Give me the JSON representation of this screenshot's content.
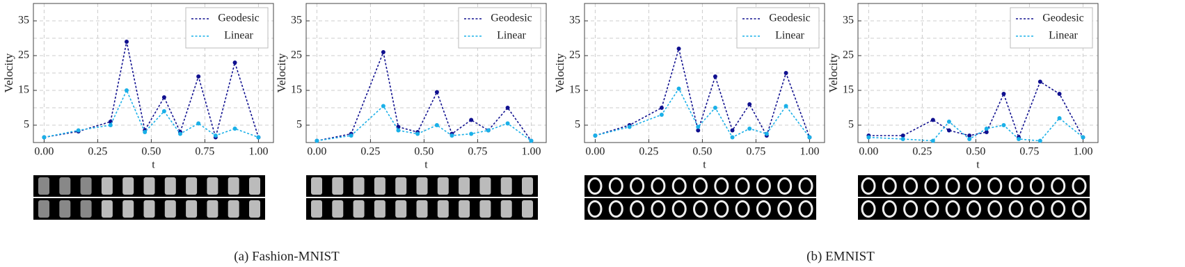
{
  "chart_data": [
    {
      "type": "line",
      "xlabel": "t",
      "ylabel": "Velocity",
      "x": [
        0.0,
        0.16,
        0.31,
        0.385,
        0.47,
        0.56,
        0.635,
        0.72,
        0.8,
        0.89,
        1.0
      ],
      "series": [
        {
          "name": "Geodesic",
          "color": "#10108f",
          "values": [
            1.5,
            3.2,
            6,
            29,
            3.5,
            13,
            3,
            19,
            1.5,
            23,
            1.5
          ]
        },
        {
          "name": "Linear",
          "color": "#1ab0e8",
          "values": [
            1.5,
            3.5,
            5,
            15,
            3,
            9,
            2.5,
            5.5,
            2,
            4,
            1.5
          ]
        }
      ],
      "xlim": [
        -0.05,
        1.07
      ],
      "ylim": [
        0,
        40
      ],
      "xticks": [
        {
          "value": 0,
          "label": "0.00"
        },
        {
          "value": 0.25,
          "label": "0.25"
        },
        {
          "value": 0.5,
          "label": "0.50"
        },
        {
          "value": 0.75,
          "label": "0.75"
        },
        {
          "value": 1,
          "label": "1.00"
        }
      ],
      "yticks": [
        5,
        15,
        25,
        35
      ],
      "grid_yticks": [
        10,
        20,
        30
      ],
      "grid": true,
      "legend": "upper right"
    },
    {
      "type": "line",
      "xlabel": "t",
      "ylabel": "Velocity",
      "x": [
        0.0,
        0.16,
        0.31,
        0.38,
        0.47,
        0.56,
        0.63,
        0.72,
        0.8,
        0.89,
        1.0
      ],
      "series": [
        {
          "name": "Geodesic",
          "color": "#10108f",
          "values": [
            0.5,
            2.5,
            26,
            4.5,
            3,
            14.5,
            2.5,
            6.5,
            3.5,
            10,
            0.5
          ]
        },
        {
          "name": "Linear",
          "color": "#1ab0e8",
          "values": [
            0.5,
            2,
            10.5,
            3.5,
            2.5,
            5,
            2,
            2.5,
            3.5,
            5.5,
            0.5
          ]
        }
      ],
      "xlim": [
        -0.05,
        1.07
      ],
      "ylim": [
        0,
        40
      ],
      "xticks": [
        {
          "value": 0,
          "label": "0.00"
        },
        {
          "value": 0.25,
          "label": "0.25"
        },
        {
          "value": 0.5,
          "label": "0.50"
        },
        {
          "value": 0.75,
          "label": "0.75"
        },
        {
          "value": 1,
          "label": "1.00"
        }
      ],
      "yticks": [
        5,
        15,
        25,
        35
      ],
      "grid_yticks": [
        10,
        20,
        30
      ],
      "grid": true,
      "legend": "upper right"
    },
    {
      "type": "line",
      "xlabel": "t",
      "ylabel": "Velocity",
      "x": [
        0.0,
        0.16,
        0.31,
        0.39,
        0.48,
        0.56,
        0.64,
        0.72,
        0.8,
        0.89,
        1.0
      ],
      "series": [
        {
          "name": "Geodesic",
          "color": "#10108f",
          "values": [
            2,
            5,
            10,
            27,
            3.5,
            19,
            3.5,
            11,
            2,
            20,
            1.5
          ]
        },
        {
          "name": "Linear",
          "color": "#1ab0e8",
          "values": [
            2,
            4.5,
            8,
            15.5,
            4.5,
            10,
            1.5,
            4,
            2.5,
            10.5,
            1.5
          ]
        }
      ],
      "xlim": [
        -0.05,
        1.07
      ],
      "ylim": [
        0,
        40
      ],
      "xticks": [
        {
          "value": 0,
          "label": "0.00"
        },
        {
          "value": 0.25,
          "label": "0.25"
        },
        {
          "value": 0.5,
          "label": "0.50"
        },
        {
          "value": 0.75,
          "label": "0.75"
        },
        {
          "value": 1,
          "label": "1.00"
        }
      ],
      "yticks": [
        5,
        15,
        25,
        35
      ],
      "grid_yticks": [
        10,
        20,
        30
      ],
      "grid": true,
      "legend": "upper right"
    },
    {
      "type": "line",
      "xlabel": "t",
      "ylabel": "Velocity",
      "x": [
        0.0,
        0.16,
        0.3,
        0.375,
        0.47,
        0.55,
        0.63,
        0.7,
        0.8,
        0.89,
        1.0
      ],
      "series": [
        {
          "name": "Geodesic",
          "color": "#10108f",
          "values": [
            2,
            2,
            6.5,
            3.5,
            2,
            3,
            14,
            1.5,
            17.5,
            14,
            1.5
          ]
        },
        {
          "name": "Linear",
          "color": "#1ab0e8",
          "values": [
            1.5,
            1,
            0.5,
            6,
            1,
            4,
            5,
            1,
            0.5,
            7,
            1.5
          ]
        }
      ],
      "xlim": [
        -0.05,
        1.07
      ],
      "ylim": [
        0,
        40
      ],
      "xticks": [
        {
          "value": 0,
          "label": "0.00"
        },
        {
          "value": 0.25,
          "label": "0.25"
        },
        {
          "value": 0.5,
          "label": "0.50"
        },
        {
          "value": 0.75,
          "label": "0.75"
        },
        {
          "value": 1,
          "label": "1.00"
        }
      ],
      "yticks": [
        5,
        15,
        25,
        35
      ],
      "grid_yticks": [
        10,
        20,
        30
      ],
      "grid": true,
      "legend": "upper right"
    }
  ],
  "captions": [
    "(a) Fashion-MNIST",
    "(b) EMNIST"
  ]
}
